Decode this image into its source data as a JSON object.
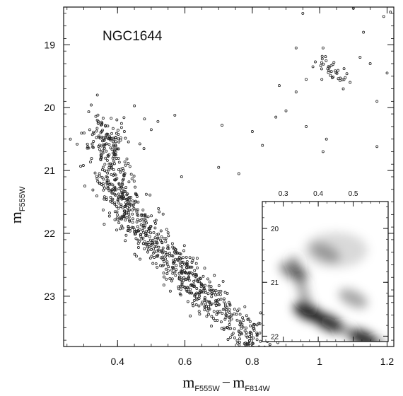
{
  "chart_data": [
    {
      "type": "scatter",
      "title": "NGC1644",
      "xlabel": {
        "main": "m",
        "sub1": "F555W",
        "minus": "−",
        "main2": "m",
        "sub2": "F814W"
      },
      "ylabel": {
        "main": "m",
        "sub": "F555W"
      },
      "xlim": [
        0.24,
        1.22
      ],
      "ylim": [
        23.8,
        18.4
      ],
      "y_inverted": true,
      "x_ticks": [
        0.4,
        0.6,
        0.8,
        1,
        1.2
      ],
      "x_tick_labels": [
        "0.4",
        "0.6",
        "0.8",
        "1",
        "1.2"
      ],
      "y_ticks": [
        19,
        20,
        21,
        22,
        23
      ],
      "y_tick_labels": [
        "19",
        "20",
        "21",
        "22",
        "23"
      ],
      "grid": false,
      "marker_color": "#222222",
      "sequences": [
        {
          "name": "main-sequence",
          "count": 900,
          "spread": 0.032,
          "path": [
            [
              0.36,
              20.25
            ],
            [
              0.37,
              20.6
            ],
            [
              0.38,
              21.0
            ],
            [
              0.4,
              21.4
            ],
            [
              0.45,
              21.8
            ],
            [
              0.5,
              22.1
            ],
            [
              0.56,
              22.45
            ],
            [
              0.62,
              22.8
            ],
            [
              0.69,
              23.1
            ],
            [
              0.75,
              23.4
            ],
            [
              0.81,
              23.75
            ]
          ]
        },
        {
          "name": "red-clump",
          "count": 35,
          "spread": 0.015,
          "path": [
            [
              1.0,
              19.25
            ],
            [
              1.04,
              19.45
            ],
            [
              1.07,
              19.6
            ]
          ]
        }
      ],
      "stars": [
        [
          0.34,
          19.8
        ],
        [
          0.45,
          19.97
        ],
        [
          0.57,
          20.12
        ],
        [
          0.48,
          20.18
        ],
        [
          0.52,
          20.22
        ],
        [
          0.5,
          20.35
        ],
        [
          0.71,
          20.28
        ],
        [
          0.8,
          20.38
        ],
        [
          0.83,
          20.6
        ],
        [
          0.26,
          20.5
        ],
        [
          0.28,
          20.58
        ],
        [
          0.7,
          20.95
        ],
        [
          0.76,
          21.05
        ],
        [
          0.59,
          21.1
        ],
        [
          0.9,
          20.05
        ],
        [
          0.87,
          20.15
        ],
        [
          0.96,
          20.3
        ],
        [
          1.02,
          20.5
        ],
        [
          1.17,
          20.62
        ],
        [
          1.01,
          20.7
        ],
        [
          0.93,
          19.05
        ],
        [
          0.98,
          19.35
        ],
        [
          0.88,
          19.65
        ],
        [
          0.93,
          19.75
        ],
        [
          0.96,
          19.55
        ],
        [
          0.95,
          18.5
        ],
        [
          1.1,
          18.42
        ],
        [
          1.13,
          18.8
        ],
        [
          1.15,
          19.3
        ],
        [
          1.12,
          19.2
        ],
        [
          1.19,
          18.55
        ],
        [
          1.21,
          18.48
        ],
        [
          1.17,
          19.9
        ],
        [
          1.2,
          19.45
        ],
        [
          1.07,
          19.7
        ],
        [
          1.01,
          19.05
        ]
      ],
      "inset": {
        "type": "heatmap",
        "x_ticks": [
          0.3,
          0.4,
          0.5
        ],
        "x_tick_labels": [
          "0.3",
          "0.4",
          "0.5"
        ],
        "y_ticks": [
          20,
          21,
          22
        ],
        "y_tick_labels": [
          "20",
          "21",
          "22"
        ],
        "xlim": [
          0.24,
          0.6
        ],
        "ylim": [
          22.1,
          19.5
        ],
        "y_inverted": true,
        "density_peaks": [
          {
            "x": 0.37,
            "y": 21.55,
            "weight": 1.0
          },
          {
            "x": 0.43,
            "y": 21.75,
            "weight": 0.9
          },
          {
            "x": 0.53,
            "y": 22.05,
            "weight": 0.95
          },
          {
            "x": 0.33,
            "y": 20.8,
            "weight": 0.55
          },
          {
            "x": 0.42,
            "y": 20.45,
            "weight": 0.35
          },
          {
            "x": 0.5,
            "y": 21.3,
            "weight": 0.4
          }
        ]
      }
    }
  ]
}
